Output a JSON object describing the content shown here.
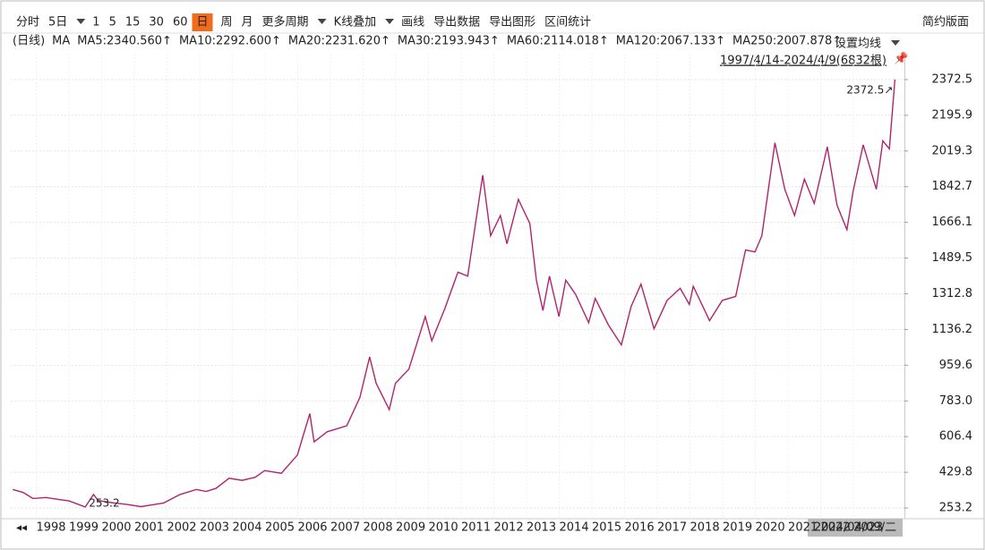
{
  "toolbar": {
    "left": [
      "分时",
      "5日",
      "1",
      "5",
      "15",
      "30",
      "60",
      "日",
      "周",
      "月",
      "更多周期",
      "K线叠加",
      "画线",
      "导出数据",
      "导出图形",
      "区间统计"
    ],
    "right": "简约版面"
  },
  "ma_legend": [
    "(日线)",
    "MA",
    "MA5:2340.560↑",
    "MA10:2292.600↑",
    "MA20:2231.620↑",
    "MA30:2193.943↑",
    "MA60:2114.018↑",
    "MA120:2067.133↑",
    "MA250:2007.878↑"
  ],
  "ma_setting": "设置均线",
  "range_label": "1997/4/14-2024/4/9(6832根)",
  "cursor_date": "2024/04/09/二",
  "chart_data": {
    "type": "line",
    "x": [
      1997.28,
      1997.6,
      1997.9,
      1998.3,
      1998.7,
      1999.0,
      1999.5,
      1999.75,
      1999.9,
      2000.3,
      2000.8,
      2001.2,
      2001.6,
      2001.9,
      2002.4,
      2002.9,
      2003.2,
      2003.5,
      2003.9,
      2004.3,
      2004.7,
      2004.99,
      2005.5,
      2005.99,
      2006.37,
      2006.5,
      2006.9,
      2007.5,
      2007.9,
      2008.2,
      2008.4,
      2008.8,
      2008.99,
      2009.4,
      2009.9,
      2010.1,
      2010.5,
      2010.9,
      2011.2,
      2011.66,
      2011.9,
      2012.2,
      2012.4,
      2012.75,
      2013.1,
      2013.3,
      2013.5,
      2013.7,
      2013.99,
      2014.2,
      2014.5,
      2014.9,
      2015.1,
      2015.5,
      2015.9,
      2016.2,
      2016.5,
      2016.9,
      2017.3,
      2017.7,
      2017.98,
      2018.1,
      2018.6,
      2018.99,
      2019.4,
      2019.7,
      2019.99,
      2020.2,
      2020.6,
      2020.9,
      2021.2,
      2021.5,
      2021.8,
      2022.2,
      2022.5,
      2022.8,
      2022.99,
      2023.3,
      2023.7,
      2023.9,
      2024.1,
      2024.27
    ],
    "values": [
      345,
      330,
      300,
      305,
      295,
      288,
      258,
      320,
      290,
      280,
      270,
      260,
      270,
      278,
      320,
      345,
      335,
      350,
      400,
      390,
      405,
      438,
      425,
      515,
      720,
      580,
      630,
      660,
      800,
      1000,
      870,
      740,
      870,
      940,
      1200,
      1080,
      1240,
      1420,
      1400,
      1900,
      1600,
      1700,
      1560,
      1780,
      1660,
      1380,
      1230,
      1400,
      1200,
      1380,
      1310,
      1170,
      1290,
      1160,
      1060,
      1250,
      1360,
      1140,
      1280,
      1340,
      1260,
      1350,
      1180,
      1280,
      1300,
      1530,
      1520,
      1600,
      2060,
      1830,
      1700,
      1880,
      1760,
      2040,
      1750,
      1630,
      1820,
      2050,
      1830,
      2070,
      2030,
      2372.5
    ],
    "color": "#b0246e",
    "xlim": [
      1997.22,
      2024.56
    ],
    "xticks": [
      1998,
      1999,
      2000,
      2001,
      2002,
      2003,
      2004,
      2005,
      2006,
      2007,
      2008,
      2009,
      2010,
      2011,
      2012,
      2013,
      2014,
      2015,
      2016,
      2017,
      2018,
      2019,
      2020,
      2021,
      2022,
      2023
    ],
    "ylim": [
      209,
      2500.8
    ],
    "yticks": [
      {
        "value": 253.2,
        "label": "253.2"
      },
      {
        "value": 429.8,
        "label": "429.8"
      },
      {
        "value": 606.4,
        "label": "606.4"
      },
      {
        "value": 783,
        "label": "783.0"
      },
      {
        "value": 959.6,
        "label": "959.6"
      },
      {
        "value": 1136.2,
        "label": "1136.2"
      },
      {
        "value": 1312.8,
        "label": "1312.8"
      },
      {
        "value": 1489.5,
        "label": "1489.5"
      },
      {
        "value": 1666.1,
        "label": "1666.1"
      },
      {
        "value": 1842.7,
        "label": "1842.7"
      },
      {
        "value": 2019.3,
        "label": "2019.3"
      },
      {
        "value": 2195.9,
        "label": "2195.9"
      },
      {
        "value": 2372.5,
        "label": "2372.5"
      }
    ],
    "grid": true,
    "annotations": [
      "2372.5↗",
      "253.2"
    ]
  }
}
